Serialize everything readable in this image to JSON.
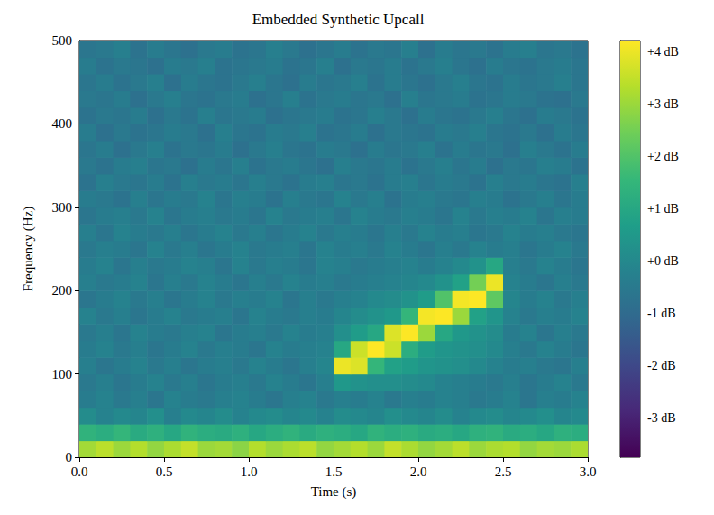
{
  "chart_data": {
    "type": "heatmap",
    "title": "Embedded Synthetic Upcall",
    "x_label": "Time (s)",
    "y_label": "Frequency (Hz)",
    "xlim": [
      0,
      3
    ],
    "xticks": [
      {
        "value": 0,
        "label": "0.0"
      },
      0.5,
      {
        "value": 1,
        "label": "1.0"
      },
      1.5,
      {
        "value": 2,
        "label": "2.0"
      },
      2.5,
      {
        "value": 3,
        "label": "3.0"
      }
    ],
    "ylim": [
      0,
      500
    ],
    "yticks": [
      0,
      100,
      200,
      300,
      400,
      500
    ],
    "time_bins": [
      0,
      0.1,
      0.2,
      0.3,
      0.4,
      0.5,
      0.6,
      0.7,
      0.8,
      0.9,
      1.0,
      1.1,
      1.2,
      1.3,
      1.4,
      1.5,
      1.6,
      1.7,
      1.8,
      1.9,
      2.0,
      2.1,
      2.2,
      2.3,
      2.4,
      2.5,
      2.6,
      2.7,
      2.8,
      2.9,
      3.0
    ],
    "frequency_bins": [
      0,
      20,
      40,
      60,
      80,
      100,
      120,
      140,
      160,
      180,
      200,
      220,
      240,
      260,
      280,
      300,
      320,
      340,
      360,
      380,
      400,
      420,
      440,
      460,
      480,
      500
    ],
    "cells": [
      [
        3.1,
        3.4,
        3.0,
        3.3,
        2.9,
        3.2,
        3.5,
        3.0,
        3.1,
        2.8,
        3.3,
        3.0,
        3.2,
        3.4,
        2.9,
        3.1,
        3.3,
        3.0,
        3.5,
        3.2,
        2.9,
        3.1,
        3.4,
        3.0,
        3.2,
        3.3,
        2.9,
        3.1,
        3.0,
        3.2
      ],
      [
        1.4,
        1.2,
        1.5,
        1.1,
        1.3,
        1.0,
        1.4,
        1.2,
        1.1,
        1.3,
        1.0,
        1.2,
        1.4,
        1.1,
        1.3,
        1.2,
        1.0,
        1.4,
        1.2,
        1.3,
        1.1,
        1.2,
        1.0,
        1.3,
        1.4,
        1.1,
        1.2,
        1.0,
        1.3,
        1.2
      ],
      [
        0.1,
        -0.2,
        0.0,
        -0.1,
        0.2,
        -0.3,
        0.0,
        -0.1,
        0.1,
        -0.2,
        0.0,
        0.1,
        -0.1,
        0.0,
        -0.2,
        0.1,
        0.0,
        -0.1,
        0.2,
        0.0,
        -0.1,
        0.1,
        -0.2,
        0.0,
        0.1,
        -0.1,
        0.0,
        0.2,
        -0.1,
        0.0
      ],
      [
        -0.4,
        -0.2,
        -0.5,
        -0.3,
        -0.6,
        -0.2,
        -0.4,
        -0.5,
        -0.3,
        -0.2,
        -0.4,
        -0.6,
        -0.3,
        -0.2,
        -0.5,
        -0.3,
        -0.4,
        -0.2,
        -0.5,
        -0.3,
        -0.4,
        -0.2,
        -0.3,
        -0.5,
        -0.4,
        -0.2,
        -0.6,
        -0.3,
        -0.4,
        -0.2
      ],
      [
        -0.5,
        -0.3,
        -0.6,
        -0.4,
        -0.2,
        -0.5,
        -0.3,
        -0.6,
        -0.4,
        -0.3,
        -0.5,
        -0.2,
        -0.4,
        -0.6,
        -0.3,
        0.5,
        0.3,
        0.2,
        0.2,
        0.1,
        0.0,
        -0.2,
        -0.3,
        -0.4,
        -0.5,
        -0.3,
        -0.6,
        -0.4,
        -0.2,
        -0.5
      ],
      [
        -0.3,
        -0.6,
        -0.4,
        -0.2,
        -0.5,
        -0.3,
        -0.6,
        -0.4,
        -0.3,
        -0.5,
        -0.2,
        -0.4,
        -0.6,
        -0.3,
        -0.1,
        4.0,
        3.8,
        1.5,
        0.8,
        0.6,
        0.4,
        0.3,
        0.2,
        0.0,
        -0.2,
        -0.4,
        -0.3,
        -0.5,
        -0.6,
        -0.3
      ],
      [
        -0.4,
        -0.2,
        -0.5,
        -0.3,
        -0.6,
        -0.4,
        -0.2,
        -0.5,
        -0.3,
        -0.4,
        -0.6,
        -0.2,
        -0.4,
        -0.3,
        -0.2,
        1.0,
        3.6,
        4.2,
        3.6,
        1.2,
        0.6,
        0.4,
        0.3,
        0.2,
        0.0,
        -0.3,
        -0.5,
        -0.2,
        -0.4,
        -0.6
      ],
      [
        -0.5,
        -0.3,
        -0.6,
        -0.2,
        -0.4,
        -0.5,
        -0.3,
        -0.2,
        -0.6,
        -0.4,
        -0.3,
        -0.5,
        -0.2,
        -0.4,
        -0.3,
        0.2,
        0.6,
        1.0,
        3.8,
        4.2,
        3.0,
        1.0,
        0.5,
        0.3,
        0.1,
        -0.4,
        -0.2,
        -0.6,
        -0.3,
        -0.5
      ],
      [
        -0.2,
        -0.5,
        -0.3,
        -0.6,
        -0.4,
        -0.2,
        -0.5,
        -0.4,
        -0.3,
        -0.6,
        -0.2,
        -0.4,
        -0.5,
        -0.3,
        -0.4,
        -0.1,
        0.1,
        0.3,
        0.5,
        1.5,
        4.1,
        4.2,
        3.0,
        0.8,
        0.4,
        -0.2,
        -0.5,
        -0.3,
        -0.4,
        -0.2
      ],
      [
        -0.6,
        -0.4,
        -0.2,
        -0.5,
        -0.3,
        -0.6,
        -0.4,
        -0.2,
        -0.5,
        -0.3,
        -0.4,
        -0.2,
        -0.6,
        -0.3,
        -0.5,
        -0.3,
        -0.2,
        0.0,
        0.1,
        0.3,
        0.6,
        2.0,
        4.1,
        4.2,
        2.2,
        -0.1,
        -0.4,
        -0.2,
        -0.5,
        -0.3
      ],
      [
        -0.3,
        -0.5,
        -0.4,
        -0.2,
        -0.6,
        -0.3,
        -0.5,
        -0.2,
        -0.4,
        -0.6,
        -0.3,
        -0.5,
        -0.2,
        -0.4,
        -0.3,
        -0.5,
        -0.4,
        -0.3,
        -0.2,
        -0.1,
        0.0,
        0.3,
        0.8,
        2.5,
        4.0,
        -0.2,
        -0.4,
        -0.6,
        -0.3,
        -0.5
      ],
      [
        -0.4,
        -0.2,
        -0.6,
        -0.3,
        -0.5,
        -0.4,
        -0.2,
        -0.3,
        -0.6,
        -0.2,
        -0.5,
        -0.3,
        -0.4,
        -0.6,
        -0.2,
        -0.3,
        -0.5,
        -0.4,
        -0.3,
        -0.2,
        -0.4,
        -0.2,
        0.0,
        0.3,
        1.0,
        -0.3,
        -0.5,
        -0.2,
        -0.4,
        -0.6
      ],
      [
        -0.5,
        -0.3,
        -0.4,
        -0.6,
        -0.2,
        -0.5,
        -0.3,
        -0.6,
        -0.4,
        -0.2,
        -0.5,
        -0.4,
        -0.3,
        -0.6,
        -0.2,
        -0.4,
        -0.3,
        -0.5,
        -0.2,
        -0.4,
        -0.6,
        -0.3,
        -0.5,
        -0.2,
        -0.4,
        -0.3,
        -0.6,
        -0.4,
        -0.2,
        -0.5
      ],
      [
        -0.3,
        -0.6,
        -0.2,
        -0.4,
        -0.5,
        -0.3,
        -0.6,
        -0.4,
        -0.2,
        -0.5,
        -0.3,
        -0.6,
        -0.4,
        -0.2,
        -0.5,
        -0.3,
        -0.4,
        -0.6,
        -0.3,
        -0.5,
        -0.2,
        -0.4,
        -0.3,
        -0.6,
        -0.5,
        -0.2,
        -0.4,
        -0.3,
        -0.5,
        -0.6
      ],
      [
        -0.6,
        -0.4,
        -0.3,
        -0.5,
        -0.2,
        -0.6,
        -0.4,
        -0.3,
        -0.5,
        -0.4,
        -0.6,
        -0.2,
        -0.5,
        -0.4,
        -0.3,
        -0.6,
        -0.2,
        -0.4,
        -0.5,
        -0.3,
        -0.4,
        -0.6,
        -0.2,
        -0.5,
        -0.3,
        -0.4,
        -0.2,
        -0.6,
        -0.3,
        -0.4
      ],
      [
        -0.4,
        -0.5,
        -0.7,
        -0.3,
        -0.6,
        -0.4,
        -0.5,
        -0.2,
        -0.6,
        -0.3,
        -0.4,
        -0.7,
        -0.3,
        -0.5,
        -0.6,
        -0.2,
        -0.5,
        -0.3,
        -0.7,
        -0.4,
        -0.3,
        -0.5,
        -0.6,
        -0.3,
        -0.4,
        -0.7,
        -0.5,
        -0.3,
        -0.6,
        -0.4
      ],
      [
        -0.7,
        -0.3,
        -0.5,
        -0.6,
        -0.4,
        -0.7,
        -0.3,
        -0.5,
        -0.4,
        -0.6,
        -0.3,
        -0.5,
        -0.7,
        -0.4,
        -0.3,
        -0.6,
        -0.5,
        -0.7,
        -0.4,
        -0.3,
        -0.6,
        -0.4,
        -0.5,
        -0.7,
        -0.3,
        -0.5,
        -0.4,
        -0.6,
        -0.7,
        -0.3
      ],
      [
        -0.5,
        -0.7,
        -0.4,
        -0.3,
        -0.6,
        -0.5,
        -0.8,
        -0.4,
        -0.6,
        -0.3,
        -0.7,
        -0.5,
        -0.4,
        -0.6,
        -0.8,
        -0.3,
        -0.5,
        -0.6,
        -0.4,
        -0.7,
        -0.5,
        -0.3,
        -0.6,
        -0.4,
        -0.8,
        -0.5,
        -0.6,
        -0.3,
        -0.4,
        -0.7
      ],
      [
        -0.6,
        -0.4,
        -0.8,
        -0.5,
        -0.3,
        -0.7,
        -0.5,
        -0.6,
        -0.4,
        -0.8,
        -0.5,
        -0.3,
        -0.6,
        -0.7,
        -0.4,
        -0.5,
        -0.8,
        -0.4,
        -0.6,
        -0.5,
        -0.3,
        -0.7,
        -0.4,
        -0.6,
        -0.5,
        -0.8,
        -0.3,
        -0.5,
        -0.7,
        -0.4
      ],
      [
        -0.4,
        -0.8,
        -0.5,
        -0.7,
        -0.6,
        -0.4,
        -0.5,
        -0.8,
        -0.3,
        -0.6,
        -0.7,
        -0.4,
        -0.5,
        -0.3,
        -0.7,
        -0.6,
        -0.4,
        -0.8,
        -0.5,
        -0.6,
        -0.7,
        -0.4,
        -0.5,
        -0.3,
        -0.6,
        -0.7,
        -0.5,
        -0.8,
        -0.4,
        -0.6
      ],
      [
        -0.7,
        -0.5,
        -0.6,
        -0.4,
        -0.8,
        -0.5,
        -0.7,
        -0.3,
        -0.6,
        -0.5,
        -0.4,
        -0.8,
        -0.6,
        -0.5,
        -0.4,
        -0.7,
        -0.6,
        -0.3,
        -0.5,
        -0.8,
        -0.4,
        -0.6,
        -0.7,
        -0.5,
        -0.3,
        -0.6,
        -0.8,
        -0.4,
        -0.5,
        -0.7
      ],
      [
        -0.5,
        -0.6,
        -0.4,
        -0.8,
        -0.5,
        -0.3,
        -0.6,
        -0.7,
        -0.5,
        -0.4,
        -0.8,
        -0.6,
        -0.3,
        -0.7,
        -0.5,
        -0.4,
        -0.6,
        -0.5,
        -0.8,
        -0.3,
        -0.6,
        -0.5,
        -0.4,
        -0.7,
        -0.6,
        -0.4,
        -0.5,
        -0.7,
        -0.8,
        -0.5
      ],
      [
        -0.6,
        -0.4,
        -0.7,
        -0.5,
        -0.3,
        -0.8,
        -0.4,
        -0.6,
        -0.7,
        -0.5,
        -0.3,
        -0.6,
        -0.8,
        -0.4,
        -0.6,
        -0.5,
        -0.3,
        -0.7,
        -0.4,
        -0.6,
        -0.8,
        -0.5,
        -0.3,
        -0.6,
        -0.7,
        -0.4,
        -0.6,
        -0.5,
        -0.3,
        -0.6
      ],
      [
        -0.4,
        -0.7,
        -0.5,
        -0.6,
        -0.8,
        -0.4,
        -0.5,
        -0.3,
        -0.7,
        -0.6,
        -0.5,
        -0.4,
        -0.7,
        -0.6,
        -0.3,
        -0.8,
        -0.5,
        -0.6,
        -0.4,
        -0.7,
        -0.5,
        -0.3,
        -0.6,
        -0.8,
        -0.4,
        -0.6,
        -0.7,
        -0.5,
        -0.4,
        -0.6
      ],
      [
        -0.6,
        -0.5,
        -0.3,
        -0.7,
        -0.4,
        -0.6,
        -0.8,
        -0.5,
        -0.4,
        -0.7,
        -0.6,
        -0.3,
        -0.5,
        -0.8,
        -0.6,
        -0.4,
        -0.7,
        -0.5,
        -0.6,
        -0.3,
        -0.8,
        -0.4,
        -0.6,
        -0.5,
        -0.7,
        -0.4,
        -0.3,
        -0.6,
        -0.5,
        -0.7
      ]
    ],
    "colorbar_range": [
      -3.74,
      4.21
    ],
    "colorbar_ticks": [
      {
        "value": 4,
        "label": "+4 dB"
      },
      {
        "value": 3,
        "label": "+3 dB"
      },
      {
        "value": 2,
        "label": "+2 dB"
      },
      {
        "value": 1,
        "label": "+1 dB"
      },
      {
        "value": 0,
        "label": "+0 dB"
      },
      {
        "value": -1,
        "label": "-1 dB"
      },
      {
        "value": -2,
        "label": "-2 dB"
      },
      {
        "value": -3,
        "label": "-3 dB"
      }
    ]
  }
}
